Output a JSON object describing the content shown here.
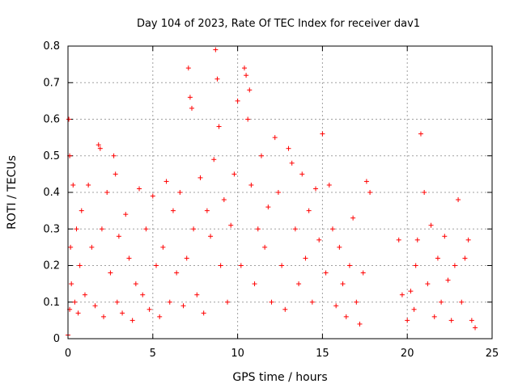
{
  "chart_data": {
    "type": "scatter",
    "title": "Day 104 of 2023, Rate Of TEC Index for receiver dav1",
    "xlabel": "GPS time / hours",
    "ylabel": "ROTI / TECUs",
    "xlim": [
      0,
      25
    ],
    "ylim": [
      0,
      0.8
    ],
    "xticks": [
      0,
      5,
      10,
      15,
      20,
      25
    ],
    "yticks": [
      0,
      0.1,
      0.2,
      0.3,
      0.4,
      0.5,
      0.6,
      0.7,
      0.8
    ],
    "xtick_labels": [
      "0",
      "5",
      "10",
      "15",
      "20",
      "25"
    ],
    "ytick_labels": [
      "0",
      "0.1",
      "0.2",
      "0.3",
      "0.4",
      "0.5",
      "0.6",
      "0.7",
      "0.8"
    ],
    "grid": true,
    "marker": "+",
    "color": "#ff0000",
    "series": [
      {
        "x": [
          0.0,
          0.05,
          0.1,
          0.1,
          0.15,
          0.2,
          0.3,
          0.4,
          0.5,
          0.6,
          0.7,
          0.8,
          1.0,
          1.2,
          1.4,
          1.6,
          1.8,
          1.9,
          2.0,
          2.1,
          2.3,
          2.5,
          2.7,
          2.8,
          2.9,
          3.0,
          3.2,
          3.4,
          3.6,
          3.8,
          4.0,
          4.2,
          4.4,
          4.6,
          4.8,
          5.0,
          5.2,
          5.4,
          5.6,
          5.8,
          6.0,
          6.2,
          6.4,
          6.6,
          6.8,
          7.0,
          7.1,
          7.2,
          7.3,
          7.4,
          7.6,
          7.8,
          8.0,
          8.2,
          8.4,
          8.6,
          8.7,
          8.8,
          8.9,
          9.0,
          9.2,
          9.4,
          9.6,
          9.8,
          10.0,
          10.2,
          10.4,
          10.5,
          10.6,
          10.7,
          10.8,
          11.0,
          11.2,
          11.4,
          11.6,
          11.8,
          12.0,
          12.2,
          12.4,
          12.6,
          12.8,
          13.0,
          13.2,
          13.4,
          13.6,
          13.8,
          14.0,
          14.2,
          14.4,
          14.6,
          14.8,
          15.0,
          15.2,
          15.4,
          15.6,
          15.8,
          16.0,
          16.2,
          16.4,
          16.6,
          16.8,
          17.0,
          17.2,
          17.4,
          17.6,
          17.8,
          19.5,
          19.7,
          20.0,
          20.2,
          20.4,
          20.5,
          20.6,
          20.8,
          21.0,
          21.2,
          21.4,
          21.6,
          21.8,
          22.0,
          22.2,
          22.4,
          22.6,
          22.8,
          23.0,
          23.2,
          23.4,
          23.6,
          23.8,
          24.0
        ],
        "y": [
          0.01,
          0.6,
          0.5,
          0.08,
          0.25,
          0.15,
          0.42,
          0.1,
          0.3,
          0.07,
          0.2,
          0.35,
          0.12,
          0.42,
          0.25,
          0.09,
          0.53,
          0.52,
          0.3,
          0.06,
          0.4,
          0.18,
          0.5,
          0.45,
          0.1,
          0.28,
          0.07,
          0.34,
          0.22,
          0.05,
          0.15,
          0.41,
          0.12,
          0.3,
          0.08,
          0.39,
          0.2,
          0.06,
          0.25,
          0.43,
          0.1,
          0.35,
          0.18,
          0.4,
          0.09,
          0.22,
          0.74,
          0.66,
          0.63,
          0.3,
          0.12,
          0.44,
          0.07,
          0.35,
          0.28,
          0.49,
          0.79,
          0.71,
          0.58,
          0.2,
          0.38,
          0.1,
          0.31,
          0.45,
          0.65,
          0.2,
          0.74,
          0.72,
          0.6,
          0.68,
          0.42,
          0.15,
          0.3,
          0.5,
          0.25,
          0.36,
          0.1,
          0.55,
          0.4,
          0.2,
          0.08,
          0.52,
          0.48,
          0.3,
          0.15,
          0.45,
          0.22,
          0.35,
          0.1,
          0.41,
          0.27,
          0.56,
          0.18,
          0.42,
          0.3,
          0.09,
          0.25,
          0.15,
          0.06,
          0.2,
          0.33,
          0.1,
          0.04,
          0.18,
          0.43,
          0.4,
          0.27,
          0.12,
          0.05,
          0.13,
          0.08,
          0.2,
          0.27,
          0.56,
          0.4,
          0.15,
          0.31,
          0.06,
          0.22,
          0.1,
          0.28,
          0.16,
          0.05,
          0.2,
          0.38,
          0.1,
          0.22,
          0.27,
          0.05,
          0.03
        ]
      }
    ]
  }
}
